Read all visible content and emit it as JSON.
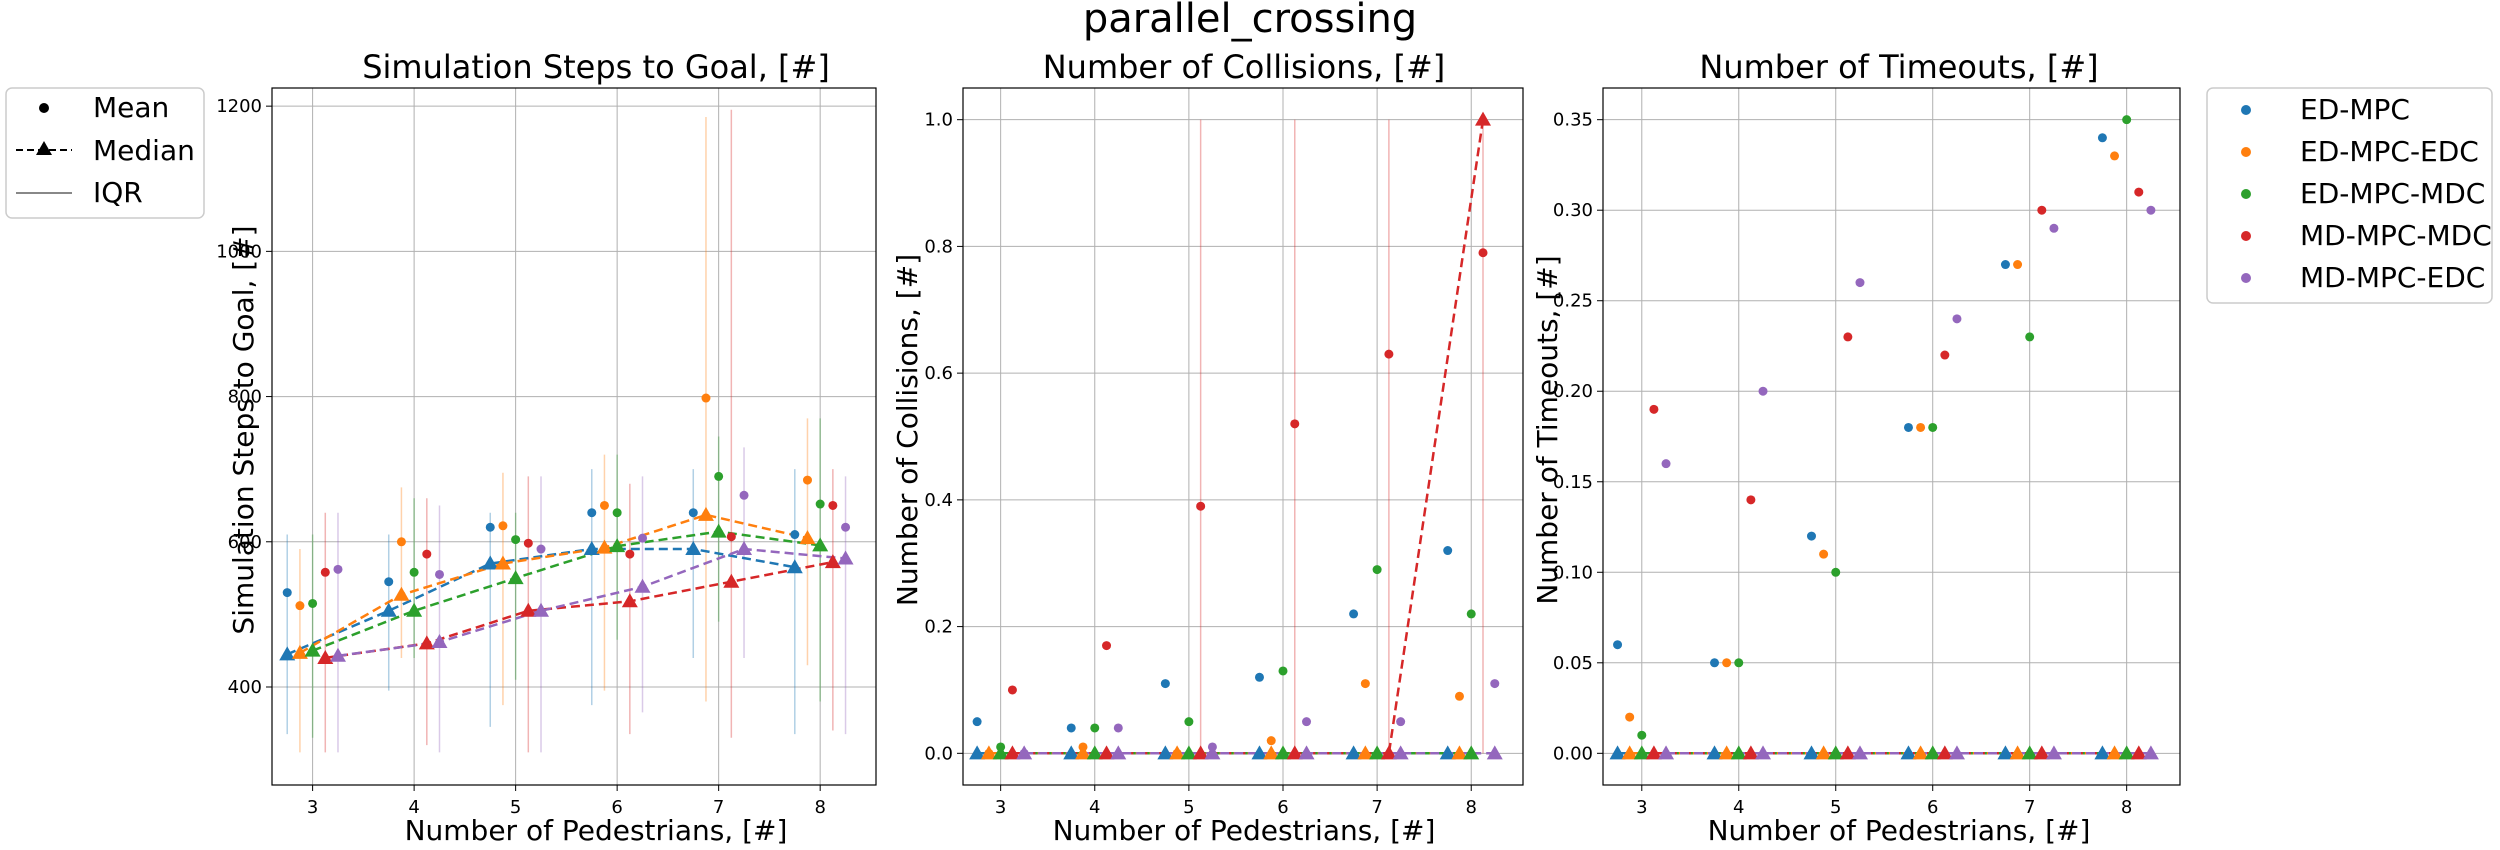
{
  "figure": {
    "suptitle": "parallel_crossing",
    "colors": {
      "ED-MPC": "#1f77b4",
      "ED-MPC-EDC": "#ff7f0e",
      "ED-MPC-MDC": "#2ca02c",
      "MD-MPC-MDC": "#d62728",
      "MD-MPC-EDC": "#9467bd"
    },
    "style_legend": {
      "entries": [
        {
          "label": "Mean",
          "marker": "circle"
        },
        {
          "label": "Median",
          "marker": "triangle-dashed"
        },
        {
          "label": "IQR",
          "marker": "line"
        }
      ]
    },
    "series_legend": {
      "entries": [
        "ED-MPC",
        "ED-MPC-EDC",
        "ED-MPC-MDC",
        "MD-MPC-MDC",
        "MD-MPC-EDC"
      ]
    }
  },
  "chart_data": [
    {
      "type": "scatter",
      "title": "Simulation Steps to Goal, [#]",
      "xlabel": "Number of Pedestrians, [#]",
      "ylabel": "Simulation Steps to Goal, [#]",
      "xlim": [
        2.6,
        8.55
      ],
      "ylim": [
        265,
        1225
      ],
      "x_ticks": [
        3,
        4,
        5,
        6,
        7,
        8
      ],
      "y_ticks": [
        400,
        600,
        800,
        1000,
        1200
      ],
      "grid": true,
      "x": [
        3,
        4,
        5,
        6,
        7,
        8
      ],
      "series": [
        {
          "name": "ED-MPC",
          "mean": [
            530,
            545,
            620,
            640,
            640,
            610
          ],
          "median": [
            445,
            505,
            570,
            590,
            590,
            565
          ],
          "iqr_low": [
            335,
            395,
            345,
            375,
            440,
            335
          ],
          "iqr_high": [
            610,
            610,
            640,
            700,
            700,
            700
          ]
        },
        {
          "name": "ED-MPC-EDC",
          "mean": [
            512,
            600,
            622,
            650,
            798,
            685
          ],
          "median": [
            447,
            527,
            570,
            592,
            637,
            605
          ],
          "iqr_low": [
            310,
            440,
            375,
            395,
            380,
            430
          ],
          "iqr_high": [
            590,
            675,
            695,
            720,
            1185,
            770
          ]
        },
        {
          "name": "ED-MPC-MDC",
          "mean": [
            515,
            558,
            603,
            640,
            690,
            652
          ],
          "median": [
            450,
            505,
            550,
            594,
            614,
            595
          ],
          "iqr_low": [
            330,
            440,
            410,
            465,
            490,
            380
          ],
          "iqr_high": [
            610,
            660,
            640,
            720,
            745,
            770
          ]
        },
        {
          "name": "MD-MPC-MDC",
          "mean": [
            558,
            583,
            598,
            583,
            607,
            650
          ],
          "median": [
            440,
            460,
            505,
            518,
            545,
            572
          ],
          "iqr_low": [
            310,
            320,
            310,
            335,
            330,
            340
          ],
          "iqr_high": [
            640,
            660,
            690,
            680,
            1195,
            700
          ]
        },
        {
          "name": "MD-MPC-EDC",
          "mean": [
            562,
            555,
            590,
            605,
            664,
            620
          ],
          "median": [
            443,
            462,
            505,
            538,
            590,
            577
          ],
          "iqr_low": [
            310,
            310,
            310,
            365,
            440,
            335
          ],
          "iqr_high": [
            640,
            650,
            690,
            690,
            730,
            690
          ]
        }
      ]
    },
    {
      "type": "scatter",
      "title": "Number of Collisions, [#]",
      "xlabel": "Number of Pedestrians, [#]",
      "ylabel": "Number of Collisions, [#]",
      "xlim": [
        2.6,
        8.55
      ],
      "ylim": [
        -0.05,
        1.05
      ],
      "x_ticks": [
        3,
        4,
        5,
        6,
        7,
        8
      ],
      "y_ticks": [
        0.0,
        0.2,
        0.4,
        0.6,
        0.8,
        1.0
      ],
      "y_tick_labels": [
        "0.0",
        "0.2",
        "0.4",
        "0.6",
        "0.8",
        "1.0"
      ],
      "grid": true,
      "x": [
        3,
        4,
        5,
        6,
        7,
        8
      ],
      "series": [
        {
          "name": "ED-MPC",
          "mean": [
            0.05,
            0.04,
            0.11,
            0.12,
            0.22,
            0.32
          ],
          "median": [
            0,
            0,
            0,
            0,
            0,
            0
          ],
          "iqr_low": [
            0,
            0,
            0,
            0,
            0,
            0
          ],
          "iqr_high": [
            0,
            0,
            0,
            0,
            0,
            0
          ]
        },
        {
          "name": "ED-MPC-EDC",
          "mean": [
            0.0,
            0.01,
            0.0,
            0.02,
            0.11,
            0.09
          ],
          "median": [
            0,
            0,
            0,
            0,
            0,
            0
          ],
          "iqr_low": [
            0,
            0,
            0,
            0,
            0,
            0
          ],
          "iqr_high": [
            0,
            0,
            0,
            0,
            0,
            0
          ]
        },
        {
          "name": "ED-MPC-MDC",
          "mean": [
            0.01,
            0.04,
            0.05,
            0.13,
            0.29,
            0.22
          ],
          "median": [
            0,
            0,
            0,
            0,
            0,
            0
          ],
          "iqr_low": [
            0,
            0,
            0,
            0,
            0,
            0
          ],
          "iqr_high": [
            0,
            0,
            0,
            0,
            0,
            0
          ]
        },
        {
          "name": "MD-MPC-MDC",
          "mean": [
            0.1,
            0.17,
            0.39,
            0.52,
            0.63,
            0.79
          ],
          "median": [
            0,
            0,
            0,
            0,
            0,
            1.0
          ],
          "iqr_low": [
            0,
            0,
            0,
            0,
            0,
            0
          ],
          "iqr_high": [
            0,
            0,
            1.0,
            1.0,
            1.0,
            1.0
          ]
        },
        {
          "name": "MD-MPC-EDC",
          "mean": [
            0.0,
            0.04,
            0.01,
            0.05,
            0.05,
            0.11
          ],
          "median": [
            0,
            0,
            0,
            0,
            0,
            0
          ],
          "iqr_low": [
            0,
            0,
            0,
            0,
            0,
            0
          ],
          "iqr_high": [
            0,
            0,
            0,
            0,
            0,
            0
          ]
        }
      ]
    },
    {
      "type": "scatter",
      "title": "Number of Timeouts, [#]",
      "xlabel": "Number of Pedestrians, [#]",
      "ylabel": "Number of Timeouts, [#]",
      "xlim": [
        2.6,
        8.55
      ],
      "ylim": [
        -0.0175,
        0.3675
      ],
      "x_ticks": [
        3,
        4,
        5,
        6,
        7,
        8
      ],
      "y_ticks": [
        0.0,
        0.05,
        0.1,
        0.15,
        0.2,
        0.25,
        0.3,
        0.35
      ],
      "y_tick_labels": [
        "0.00",
        "0.05",
        "0.10",
        "0.15",
        "0.20",
        "0.25",
        "0.30",
        "0.35"
      ],
      "grid": true,
      "x": [
        3,
        4,
        5,
        6,
        7,
        8
      ],
      "series": [
        {
          "name": "ED-MPC",
          "mean": [
            0.06,
            0.05,
            0.12,
            0.18,
            0.27,
            0.34
          ],
          "median": [
            0,
            0,
            0,
            0,
            0,
            0
          ],
          "iqr_low": [
            0,
            0,
            0,
            0,
            0,
            0
          ],
          "iqr_high": [
            0,
            0,
            0,
            0,
            0,
            0
          ]
        },
        {
          "name": "ED-MPC-EDC",
          "mean": [
            0.02,
            0.05,
            0.11,
            0.18,
            0.27,
            0.33
          ],
          "median": [
            0,
            0,
            0,
            0,
            0,
            0
          ],
          "iqr_low": [
            0,
            0,
            0,
            0,
            0,
            0
          ],
          "iqr_high": [
            0,
            0,
            0,
            0,
            0,
            0
          ]
        },
        {
          "name": "ED-MPC-MDC",
          "mean": [
            0.01,
            0.05,
            0.1,
            0.18,
            0.23,
            0.35
          ],
          "median": [
            0,
            0,
            0,
            0,
            0,
            0
          ],
          "iqr_low": [
            0,
            0,
            0,
            0,
            0,
            0
          ],
          "iqr_high": [
            0,
            0,
            0,
            0,
            0,
            0
          ]
        },
        {
          "name": "MD-MPC-MDC",
          "mean": [
            0.19,
            0.14,
            0.23,
            0.22,
            0.3,
            0.31
          ],
          "median": [
            0,
            0,
            0,
            0,
            0,
            0
          ],
          "iqr_low": [
            0,
            0,
            0,
            0,
            0,
            0
          ],
          "iqr_high": [
            0,
            0,
            0,
            0,
            0,
            0
          ]
        },
        {
          "name": "MD-MPC-EDC",
          "mean": [
            0.16,
            0.2,
            0.26,
            0.24,
            0.29,
            0.3
          ],
          "median": [
            0,
            0,
            0,
            0,
            0,
            0
          ],
          "iqr_low": [
            0,
            0,
            0,
            0,
            0,
            0
          ],
          "iqr_high": [
            0,
            0,
            0,
            0,
            0,
            0
          ]
        }
      ]
    }
  ]
}
